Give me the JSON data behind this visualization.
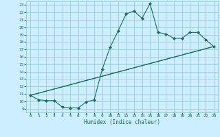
{
  "title": "",
  "xlabel": "Humidex (Indice chaleur)",
  "bg_color": "#cceeff",
  "grid_color": "#99cccc",
  "line_color": "#1a6b5a",
  "xlim": [
    -0.5,
    23.5
  ],
  "ylim": [
    8.5,
    23.5
  ],
  "yticks": [
    9,
    10,
    11,
    12,
    13,
    14,
    15,
    16,
    17,
    18,
    19,
    20,
    21,
    22,
    23
  ],
  "xticks": [
    0,
    1,
    2,
    3,
    4,
    5,
    6,
    7,
    8,
    9,
    10,
    11,
    12,
    13,
    14,
    15,
    16,
    17,
    18,
    19,
    20,
    21,
    22,
    23
  ],
  "main_x": [
    0,
    1,
    2,
    3,
    4,
    5,
    6,
    7,
    8,
    9,
    10,
    11,
    12,
    13,
    14,
    15,
    16,
    17,
    18,
    19,
    20,
    21,
    22,
    23
  ],
  "main_y": [
    10.8,
    10.2,
    10.1,
    10.1,
    9.2,
    9.1,
    9.1,
    9.9,
    10.2,
    14.3,
    17.3,
    19.5,
    21.8,
    22.2,
    21.2,
    23.2,
    19.3,
    19.1,
    18.5,
    18.5,
    19.3,
    19.3,
    18.3,
    17.4
  ],
  "trend1_x": [
    0,
    23
  ],
  "trend1_y": [
    10.8,
    17.4
  ],
  "trend2_x": [
    0,
    23
  ],
  "trend2_y": [
    10.8,
    17.4
  ]
}
